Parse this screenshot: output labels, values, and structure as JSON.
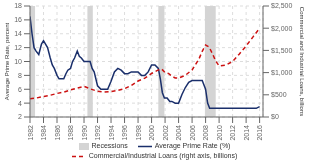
{
  "chart_data": {
    "type": "line",
    "y_label": "Average Prime Rate, percent",
    "y2_label": "Commercial and Industrial Loans, billions",
    "xlim": [
      1982,
      2016.5
    ],
    "xticks": [
      1982,
      1984,
      1986,
      1988,
      1990,
      1992,
      1994,
      1996,
      1998,
      2000,
      2002,
      2004,
      2006,
      2008,
      2010,
      2012,
      2014,
      2016
    ],
    "ylim": [
      2,
      18
    ],
    "yticks": [
      2,
      4,
      6,
      8,
      10,
      12,
      14,
      16,
      18
    ],
    "y2lim": [
      0,
      2500
    ],
    "y2ticks": [
      {
        "value": 0,
        "label": "$0"
      },
      {
        "value": 500,
        "label": "$500"
      },
      {
        "value": 1000,
        "label": "$1,000"
      },
      {
        "value": 1500,
        "label": "$1,500"
      },
      {
        "value": 2000,
        "label": "$2,000"
      },
      {
        "value": 2500,
        "label": "$2,500"
      }
    ],
    "grid": true,
    "legend": "bottom",
    "bands": {
      "name": "Recessions",
      "color": "#d4d4d4",
      "ranges": [
        [
          1982.0,
          1982.75
        ],
        [
          1990.5,
          1991.3
        ],
        [
          2001.0,
          2001.9
        ],
        [
          2007.9,
          2009.5
        ]
      ]
    },
    "series": [
      {
        "name": "Average Prime Rate (%)",
        "color": "#1a2f6b",
        "line_style": "solid",
        "x": [
          1982.0,
          1982.3,
          1982.6,
          1982.9,
          1983.3,
          1983.7,
          1984.0,
          1984.3,
          1984.6,
          1985.0,
          1985.3,
          1985.6,
          1986.0,
          1986.3,
          1986.6,
          1987.0,
          1987.3,
          1987.6,
          1988.0,
          1988.3,
          1988.6,
          1989.0,
          1989.3,
          1989.6,
          1990.0,
          1990.3,
          1990.6,
          1990.9,
          1991.2,
          1991.5,
          1992.0,
          1992.5,
          1993.0,
          1993.5,
          1994.0,
          1994.5,
          1995.0,
          1995.5,
          1996.0,
          1996.5,
          1997.0,
          1997.5,
          1998.0,
          1998.5,
          1999.0,
          1999.5,
          2000.0,
          2000.5,
          2001.0,
          2001.3,
          2001.6,
          2001.9,
          2002.3,
          2002.7,
          2003.0,
          2003.5,
          2004.0,
          2004.5,
          2005.0,
          2005.5,
          2006.0,
          2006.5,
          2007.0,
          2007.5,
          2008.0,
          2008.3,
          2008.6,
          2008.9,
          2009.2,
          2009.5,
          2010.0,
          2010.5,
          2011.0,
          2011.5,
          2012.0,
          2012.5,
          2013.0,
          2013.5,
          2014.0,
          2014.5,
          2015.0,
          2015.5,
          2016.0
        ],
        "values": [
          16.5,
          14.0,
          12.0,
          11.5,
          11.0,
          12.5,
          13.0,
          12.5,
          12.0,
          10.5,
          9.5,
          9.0,
          8.0,
          7.5,
          7.5,
          7.5,
          8.2,
          8.75,
          9.0,
          10.0,
          10.5,
          11.5,
          10.75,
          10.5,
          10.0,
          10.0,
          10.0,
          10.0,
          9.0,
          8.5,
          6.5,
          6.0,
          6.0,
          6.0,
          7.15,
          8.5,
          9.0,
          8.75,
          8.25,
          8.25,
          8.5,
          8.5,
          8.5,
          8.0,
          8.0,
          8.5,
          9.5,
          9.5,
          9.0,
          7.5,
          5.5,
          4.75,
          4.75,
          4.25,
          4.25,
          4.0,
          4.0,
          5.25,
          6.25,
          7.0,
          7.25,
          7.25,
          7.25,
          7.25,
          6.0,
          4.0,
          3.25,
          3.25,
          3.25,
          3.25,
          3.25,
          3.25,
          3.25,
          3.25,
          3.25,
          3.25,
          3.25,
          3.25,
          3.25,
          3.25,
          3.25,
          3.25,
          3.5
        ]
      },
      {
        "name": "Commercial/Industrial Loans (right axis, billions)",
        "color": "#cc1111",
        "axis": "y2",
        "line_style": "dashed",
        "x": [
          1982,
          1983,
          1984,
          1985,
          1986,
          1987,
          1988,
          1989,
          1990,
          1991,
          1992,
          1993,
          1994,
          1995,
          1996,
          1997,
          1998,
          1999,
          2000,
          2001,
          2001.5,
          2002,
          2002.5,
          2003,
          2003.5,
          2004,
          2005,
          2006,
          2007,
          2007.5,
          2008,
          2008.5,
          2009,
          2009.5,
          2010,
          2011,
          2012,
          2013,
          2014,
          2015,
          2016
        ],
        "values": [
          410,
          430,
          460,
          490,
          530,
          560,
          610,
          650,
          690,
          630,
          580,
          560,
          570,
          600,
          640,
          710,
          810,
          875,
          980,
          1060,
          1080,
          1000,
          980,
          920,
          880,
          875,
          940,
          1060,
          1300,
          1480,
          1620,
          1580,
          1430,
          1260,
          1150,
          1170,
          1250,
          1420,
          1600,
          1800,
          2000
        ]
      }
    ]
  }
}
